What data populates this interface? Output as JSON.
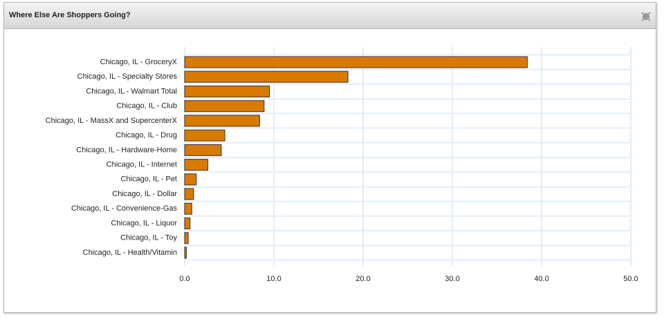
{
  "header": {
    "title": "Where Else Are Shoppers Going?"
  },
  "chart_data": {
    "type": "barh",
    "categories": [
      "Chicago, IL - GroceryX",
      "Chicago, IL - Specialty Stores",
      "Chicago, IL - Walmart Total",
      "Chicago, IL - Club",
      "Chicago, IL - MassX and SupercenterX",
      "Chicago, IL - Drug",
      "Chicago, IL - Hardware-Home",
      "Chicago, IL - Internet",
      "Chicago, IL - Pet",
      "Chicago, IL - Dollar",
      "Chicago, IL - Convenience-Gas",
      "Chicago, IL - Liquor",
      "Chicago, IL - Toy",
      "Chicago, IL - Health/Vitamin"
    ],
    "values": [
      38.4,
      18.3,
      9.5,
      8.9,
      8.4,
      4.5,
      4.1,
      2.6,
      1.3,
      1.0,
      0.8,
      0.6,
      0.4,
      0.2
    ],
    "color": "#d97a00",
    "xlim": [
      0,
      50
    ],
    "xticks": [
      {
        "value": 0,
        "label": "0.0"
      },
      {
        "value": 10,
        "label": "10.0"
      },
      {
        "value": 20,
        "label": "20.0"
      },
      {
        "value": 30,
        "label": "30.0"
      },
      {
        "value": 40,
        "label": "40.0"
      },
      {
        "value": 50,
        "label": "50.0"
      }
    ],
    "grid": true
  }
}
